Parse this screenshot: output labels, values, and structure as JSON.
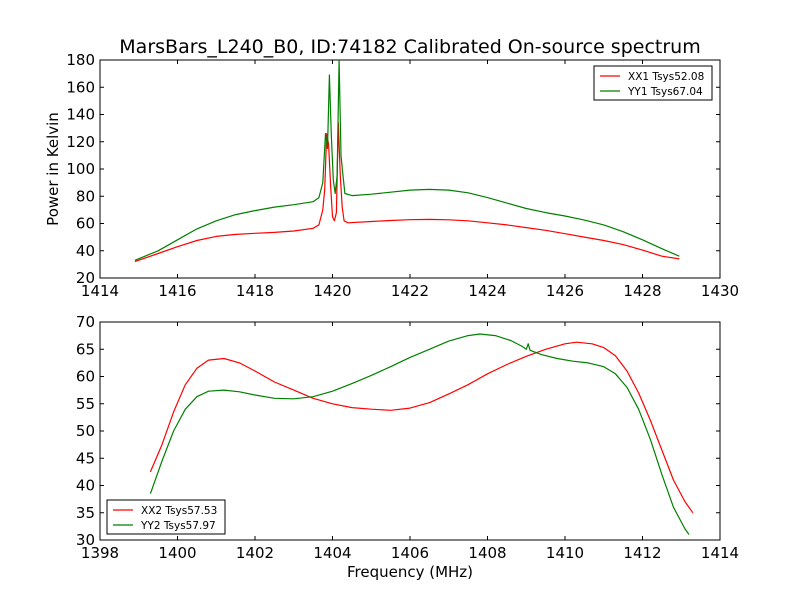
{
  "figure": {
    "title": "MarsBars_L240_B0, ID:74182 Calibrated On-source spectrum",
    "ylabel_top": "Power in Kelvin",
    "xlabel_bottom": "Frequency (MHz)"
  },
  "chart_data": [
    {
      "type": "line",
      "title": "MarsBars_L240_B0, ID:74182 Calibrated On-source spectrum",
      "xlabel": "",
      "ylabel": "Power in Kelvin",
      "xlim": [
        1414,
        1430
      ],
      "ylim": [
        20,
        180
      ],
      "xticks": [
        1414,
        1416,
        1418,
        1420,
        1422,
        1424,
        1426,
        1428,
        1430
      ],
      "yticks": [
        20,
        40,
        60,
        80,
        100,
        120,
        140,
        160,
        180
      ],
      "grid": false,
      "legend": "top-right",
      "series": [
        {
          "name": "XX1 Tsys52.08",
          "color": "#ff0000",
          "points": [
            [
              1414.9,
              32
            ],
            [
              1415.5,
              38
            ],
            [
              1416,
              43
            ],
            [
              1416.5,
              47.5
            ],
            [
              1417,
              50.5
            ],
            [
              1417.5,
              52
            ],
            [
              1418,
              52.8
            ],
            [
              1418.5,
              53.5
            ],
            [
              1419,
              54.5
            ],
            [
              1419.5,
              56.5
            ],
            [
              1419.65,
              59
            ],
            [
              1419.75,
              70
            ],
            [
              1419.8,
              85
            ],
            [
              1419.85,
              126
            ],
            [
              1419.9,
              118
            ],
            [
              1419.95,
              88
            ],
            [
              1420.0,
              65
            ],
            [
              1420.05,
              62
            ],
            [
              1420.1,
              68
            ],
            [
              1420.15,
              134
            ],
            [
              1420.2,
              95
            ],
            [
              1420.25,
              72
            ],
            [
              1420.3,
              62
            ],
            [
              1420.4,
              60.5
            ],
            [
              1421,
              61.5
            ],
            [
              1421.5,
              62.2
            ],
            [
              1422,
              62.8
            ],
            [
              1422.5,
              63
            ],
            [
              1423,
              62.7
            ],
            [
              1423.5,
              62
            ],
            [
              1424,
              60.5
            ],
            [
              1424.5,
              59
            ],
            [
              1425,
              57
            ],
            [
              1425.5,
              55
            ],
            [
              1426,
              52.5
            ],
            [
              1426.5,
              50
            ],
            [
              1427,
              47.5
            ],
            [
              1427.5,
              44.5
            ],
            [
              1428,
              40.5
            ],
            [
              1428.5,
              36
            ],
            [
              1428.95,
              34
            ]
          ]
        },
        {
          "name": "YY1 Tsys67.04",
          "color": "#008000",
          "points": [
            [
              1414.9,
              33
            ],
            [
              1415.5,
              40
            ],
            [
              1416,
              48
            ],
            [
              1416.5,
              56
            ],
            [
              1417,
              62
            ],
            [
              1417.5,
              66.5
            ],
            [
              1418,
              69.5
            ],
            [
              1418.5,
              72
            ],
            [
              1419,
              73.8
            ],
            [
              1419.5,
              76
            ],
            [
              1419.65,
              79
            ],
            [
              1419.75,
              90
            ],
            [
              1419.82,
              126
            ],
            [
              1419.87,
              115
            ],
            [
              1419.92,
              169
            ],
            [
              1419.97,
              125
            ],
            [
              1420.02,
              92
            ],
            [
              1420.07,
              82
            ],
            [
              1420.12,
              95
            ],
            [
              1420.17,
              180
            ],
            [
              1420.22,
              110
            ],
            [
              1420.27,
              95
            ],
            [
              1420.32,
              82
            ],
            [
              1420.5,
              80.5
            ],
            [
              1421,
              81.5
            ],
            [
              1421.5,
              83
            ],
            [
              1422,
              84.5
            ],
            [
              1422.5,
              85
            ],
            [
              1423,
              84.5
            ],
            [
              1423.5,
              82.5
            ],
            [
              1424,
              79
            ],
            [
              1424.5,
              75
            ],
            [
              1425,
              71
            ],
            [
              1425.5,
              68
            ],
            [
              1426,
              65.5
            ],
            [
              1426.5,
              62.5
            ],
            [
              1427,
              59
            ],
            [
              1427.5,
              54
            ],
            [
              1428,
              48
            ],
            [
              1428.5,
              41.5
            ],
            [
              1428.95,
              36
            ]
          ]
        }
      ]
    },
    {
      "type": "line",
      "title": "",
      "xlabel": "Frequency (MHz)",
      "ylabel": "",
      "xlim": [
        1398,
        1414
      ],
      "ylim": [
        30,
        70
      ],
      "xticks": [
        1398,
        1400,
        1402,
        1404,
        1406,
        1408,
        1410,
        1412,
        1414
      ],
      "yticks": [
        30,
        35,
        40,
        45,
        50,
        55,
        60,
        65,
        70
      ],
      "grid": false,
      "legend": "bottom-left",
      "series": [
        {
          "name": "XX2 Tsys57.53",
          "color": "#ff0000",
          "points": [
            [
              1399.3,
              42.5
            ],
            [
              1399.6,
              47.5
            ],
            [
              1399.9,
              53.5
            ],
            [
              1400.2,
              58.5
            ],
            [
              1400.5,
              61.5
            ],
            [
              1400.8,
              63
            ],
            [
              1401.2,
              63.3
            ],
            [
              1401.6,
              62.5
            ],
            [
              1402,
              61
            ],
            [
              1402.5,
              59
            ],
            [
              1403,
              57.5
            ],
            [
              1403.5,
              56
            ],
            [
              1404,
              55
            ],
            [
              1404.5,
              54.3
            ],
            [
              1405,
              54
            ],
            [
              1405.5,
              53.8
            ],
            [
              1406,
              54.2
            ],
            [
              1406.5,
              55.2
            ],
            [
              1407,
              56.8
            ],
            [
              1407.5,
              58.5
            ],
            [
              1408,
              60.5
            ],
            [
              1408.5,
              62.2
            ],
            [
              1409,
              63.7
            ],
            [
              1409.5,
              65
            ],
            [
              1410,
              66
            ],
            [
              1410.3,
              66.3
            ],
            [
              1410.7,
              66
            ],
            [
              1411,
              65.3
            ],
            [
              1411.3,
              63.8
            ],
            [
              1411.6,
              61
            ],
            [
              1411.9,
              57
            ],
            [
              1412.2,
              52
            ],
            [
              1412.5,
              46.5
            ],
            [
              1412.8,
              41
            ],
            [
              1413.1,
              37
            ],
            [
              1413.3,
              35
            ]
          ]
        },
        {
          "name": "YY2 Tsys57.97",
          "color": "#008000",
          "points": [
            [
              1399.3,
              38.5
            ],
            [
              1399.6,
              44.5
            ],
            [
              1399.9,
              50
            ],
            [
              1400.2,
              54
            ],
            [
              1400.5,
              56.3
            ],
            [
              1400.8,
              57.3
            ],
            [
              1401.2,
              57.5
            ],
            [
              1401.6,
              57.2
            ],
            [
              1402,
              56.6
            ],
            [
              1402.5,
              56
            ],
            [
              1403,
              55.9
            ],
            [
              1403.5,
              56.3
            ],
            [
              1404,
              57.3
            ],
            [
              1404.5,
              58.7
            ],
            [
              1405,
              60.2
            ],
            [
              1405.5,
              61.8
            ],
            [
              1406,
              63.5
            ],
            [
              1406.5,
              65
            ],
            [
              1407,
              66.5
            ],
            [
              1407.5,
              67.5
            ],
            [
              1407.8,
              67.8
            ],
            [
              1408.2,
              67.5
            ],
            [
              1408.6,
              66.6
            ],
            [
              1408.9,
              65.5
            ],
            [
              1409.0,
              65
            ],
            [
              1409.05,
              66
            ],
            [
              1409.1,
              64.8
            ],
            [
              1409.4,
              64
            ],
            [
              1409.8,
              63.3
            ],
            [
              1410.2,
              62.8
            ],
            [
              1410.6,
              62.5
            ],
            [
              1411,
              61.8
            ],
            [
              1411.3,
              60.5
            ],
            [
              1411.6,
              58
            ],
            [
              1411.9,
              54
            ],
            [
              1412.2,
              48.5
            ],
            [
              1412.5,
              42
            ],
            [
              1412.8,
              36
            ],
            [
              1413.1,
              32
            ],
            [
              1413.2,
              31
            ]
          ]
        }
      ]
    }
  ]
}
